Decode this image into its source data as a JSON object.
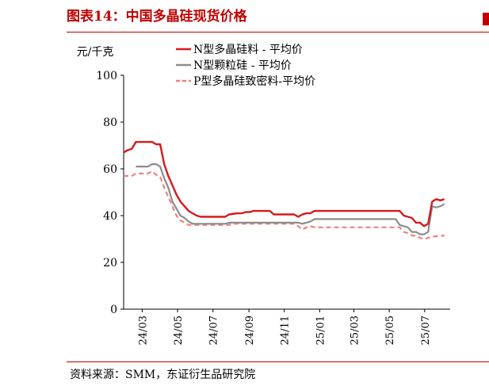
{
  "header": {
    "title": "图表14：中国多晶硅现货价格"
  },
  "footer": {
    "source": "资料来源：SMM，东证衍生品研究院"
  },
  "chart_data": {
    "type": "line",
    "title": "图表14：中国多晶硅现货价格",
    "ylabel": "元/千克",
    "ylim": [
      0,
      100
    ],
    "yticks": [
      0,
      20,
      40,
      60,
      80,
      100
    ],
    "xlim": [
      "2024-01-29",
      "2025-08-14"
    ],
    "xticks": [
      "2024-03-01",
      "2024-05-01",
      "2024-07-01",
      "2024-09-01",
      "2024-11-01",
      "2025-01-01",
      "2025-03-01",
      "2025-05-01",
      "2025-07-01"
    ],
    "xtick_labels": [
      "24/03",
      "24/05",
      "24/07",
      "24/09",
      "24/11",
      "25/01",
      "25/03",
      "25/05",
      "25/07"
    ],
    "legend": "top",
    "grid": false,
    "series": [
      {
        "name": "N型多晶硅料 - 平均价",
        "color": "#d7191c",
        "style": "solid",
        "points": [
          [
            "2024-01-29",
            67
          ],
          [
            "2024-02-05",
            68
          ],
          [
            "2024-02-12",
            68.5
          ],
          [
            "2024-02-19",
            71.5
          ],
          [
            "2024-03-18",
            71.5
          ],
          [
            "2024-03-25",
            70.5
          ],
          [
            "2024-04-01",
            70.5
          ],
          [
            "2024-04-08",
            62
          ],
          [
            "2024-04-15",
            57
          ],
          [
            "2024-04-22",
            53
          ],
          [
            "2024-04-29",
            49
          ],
          [
            "2024-05-06",
            46
          ],
          [
            "2024-05-13",
            44
          ],
          [
            "2024-05-20",
            42
          ],
          [
            "2024-05-27",
            41
          ],
          [
            "2024-06-03",
            40
          ],
          [
            "2024-06-10",
            39.5
          ],
          [
            "2024-06-17",
            39.5
          ],
          [
            "2024-07-22",
            39.5
          ],
          [
            "2024-07-29",
            40.5
          ],
          [
            "2024-08-12",
            41
          ],
          [
            "2024-08-19",
            41
          ],
          [
            "2024-08-26",
            41.5
          ],
          [
            "2024-09-02",
            41.5
          ],
          [
            "2024-09-09",
            42
          ],
          [
            "2024-10-07",
            42
          ],
          [
            "2024-10-14",
            40.5
          ],
          [
            "2024-11-18",
            40.5
          ],
          [
            "2024-11-25",
            39.5
          ],
          [
            "2024-12-02",
            40.5
          ],
          [
            "2024-12-09",
            41
          ],
          [
            "2024-12-16",
            41
          ],
          [
            "2024-12-23",
            42
          ],
          [
            "2025-05-19",
            42
          ],
          [
            "2025-05-26",
            40
          ],
          [
            "2025-06-09",
            39
          ],
          [
            "2025-06-16",
            37
          ],
          [
            "2025-06-23",
            37
          ],
          [
            "2025-06-30",
            35.5
          ],
          [
            "2025-07-07",
            36.5
          ],
          [
            "2025-07-14",
            46
          ],
          [
            "2025-07-21",
            47
          ],
          [
            "2025-07-28",
            46.5
          ],
          [
            "2025-08-04",
            47
          ]
        ]
      },
      {
        "name": "N型颗粒硅 - 平均价",
        "color": "#8c8c8c",
        "style": "solid",
        "points": [
          [
            "2024-02-19",
            61
          ],
          [
            "2024-03-11",
            61
          ],
          [
            "2024-03-18",
            62
          ],
          [
            "2024-03-25",
            62
          ],
          [
            "2024-04-01",
            61
          ],
          [
            "2024-04-08",
            56
          ],
          [
            "2024-04-15",
            52
          ],
          [
            "2024-04-22",
            46
          ],
          [
            "2024-04-29",
            43
          ],
          [
            "2024-05-06",
            40
          ],
          [
            "2024-05-13",
            39
          ],
          [
            "2024-05-20",
            37.5
          ],
          [
            "2024-05-27",
            36.5
          ],
          [
            "2024-07-22",
            36.5
          ],
          [
            "2024-07-29",
            37
          ],
          [
            "2024-11-25",
            37
          ],
          [
            "2024-12-02",
            36.5
          ],
          [
            "2024-12-09",
            37
          ],
          [
            "2024-12-16",
            37.5
          ],
          [
            "2024-12-23",
            38.5
          ],
          [
            "2025-05-12",
            38.5
          ],
          [
            "2025-05-19",
            36
          ],
          [
            "2025-06-02",
            35
          ],
          [
            "2025-06-09",
            33
          ],
          [
            "2025-06-16",
            33
          ],
          [
            "2025-06-23",
            32
          ],
          [
            "2025-06-30",
            32
          ],
          [
            "2025-07-07",
            33
          ],
          [
            "2025-07-14",
            44
          ],
          [
            "2025-07-21",
            43.5
          ],
          [
            "2025-07-28",
            44
          ],
          [
            "2025-08-04",
            45
          ]
        ]
      },
      {
        "name": "P型多晶硅致密料-平均价",
        "color": "#f08080",
        "style": "dashed",
        "points": [
          [
            "2024-01-29",
            57
          ],
          [
            "2024-02-12",
            57
          ],
          [
            "2024-02-19",
            58
          ],
          [
            "2024-03-11",
            58
          ],
          [
            "2024-03-18",
            59
          ],
          [
            "2024-03-25",
            57.5
          ],
          [
            "2024-04-01",
            56.5
          ],
          [
            "2024-04-08",
            52
          ],
          [
            "2024-04-15",
            48
          ],
          [
            "2024-04-22",
            44
          ],
          [
            "2024-04-29",
            40
          ],
          [
            "2024-05-06",
            38
          ],
          [
            "2024-05-13",
            37
          ],
          [
            "2024-05-20",
            36
          ],
          [
            "2024-07-29",
            36
          ],
          [
            "2024-08-05",
            36.5
          ],
          [
            "2024-11-18",
            36.5
          ],
          [
            "2024-11-25",
            35.5
          ],
          [
            "2024-12-02",
            34
          ],
          [
            "2024-12-09",
            35
          ],
          [
            "2024-12-16",
            35.5
          ],
          [
            "2024-12-23",
            35
          ],
          [
            "2025-05-19",
            35
          ],
          [
            "2025-05-26",
            33
          ],
          [
            "2025-06-02",
            32.5
          ],
          [
            "2025-06-09",
            31.5
          ],
          [
            "2025-06-16",
            31.5
          ],
          [
            "2025-06-23",
            30.5
          ],
          [
            "2025-06-30",
            30
          ],
          [
            "2025-07-07",
            30.5
          ],
          [
            "2025-07-14",
            31
          ],
          [
            "2025-08-04",
            31.5
          ]
        ]
      }
    ]
  }
}
